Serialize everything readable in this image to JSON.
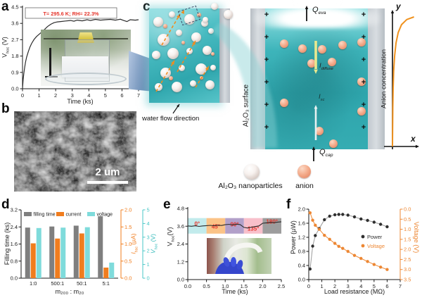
{
  "panels": {
    "a": {
      "label": "a",
      "annotation": "T= 295.6 K; RH= 22.3%",
      "xlabel": "Time (ks)",
      "ylabel": {
        "base": "V",
        "sub": "hoc",
        "unit": " (V)"
      }
    },
    "b": {
      "label": "b",
      "scale_bar": "2 um"
    },
    "c": {
      "label": "c",
      "water_flow": "water flow direction",
      "surface": "Al₂O₃ surface",
      "charge": "+",
      "q_eva": {
        "base": "Q",
        "sub": "eva"
      },
      "q_cap": {
        "base": "Q",
        "sub": "cap"
      },
      "i_diffuse": {
        "base": "I",
        "sub": "diffuse"
      },
      "i_sc": {
        "base": "I",
        "sub": "sc"
      },
      "y_axis": "y",
      "x_axis": "x",
      "concentration": "Anion concentration",
      "legend_np": "Al₂O₃ nanoparticles",
      "legend_anion": "anion"
    },
    "d": {
      "label": "d",
      "ylabel": "Filling time (ks)",
      "xlabel": "m₂₀₀ : m₂₀",
      "i_axis": {
        "base": "I",
        "sub": "hsc",
        "unit": " (µA)"
      },
      "v_axis": {
        "base": "V",
        "sub": "hoc",
        "unit": " (V)"
      }
    },
    "e": {
      "label": "e",
      "xlabel": "Time (ks)",
      "ylabel": {
        "base": "V",
        "sub": "hoc",
        "unit": "(V)"
      }
    },
    "f": {
      "label": "f",
      "ylabel": "Power (µW)",
      "y2label": "Voltage (V)",
      "xlabel": "Load resistance (MΩ)"
    }
  },
  "chart_data": [
    {
      "id": "panel_a",
      "type": "line",
      "title": "",
      "xlabel": "Time (ks)",
      "ylabel": "Vhoc (V)",
      "xlim": [
        0,
        7
      ],
      "ylim": [
        0,
        4.5
      ],
      "xticks": [
        "0",
        "1",
        "2",
        "3",
        "4",
        "5",
        "6",
        "7"
      ],
      "yticks": [
        "0.0",
        "0.9",
        "1.8",
        "2.7",
        "3.6",
        "4.5"
      ],
      "annotation": "T= 295.6 K; RH= 22.3%",
      "annotation_color": "#e5352b",
      "line_color": "#2b2b2b",
      "x": [
        0,
        0.04,
        0.08,
        0.12,
        0.18,
        0.25,
        0.35,
        0.45,
        0.55,
        0.7,
        0.85,
        1.0,
        1.15,
        1.3,
        1.5,
        1.7,
        1.9,
        2.1,
        2.3,
        2.6,
        2.9,
        3.1,
        3.3,
        3.6,
        3.9,
        4.1,
        4.4,
        4.7,
        5.0,
        5.3,
        5.6,
        5.9,
        6.1,
        6.3,
        6.5,
        6.8,
        7.0
      ],
      "y": [
        0,
        0.5,
        0.85,
        1.1,
        1.45,
        1.75,
        2.05,
        2.3,
        2.5,
        2.72,
        2.88,
        3.0,
        3.12,
        3.24,
        3.42,
        3.55,
        3.64,
        3.68,
        3.7,
        3.73,
        3.76,
        3.72,
        3.78,
        3.74,
        3.8,
        3.76,
        3.82,
        3.78,
        3.8,
        3.82,
        3.78,
        3.83,
        3.76,
        3.7,
        3.8,
        3.78,
        3.8
      ]
    },
    {
      "id": "panel_d",
      "type": "bar",
      "categories": [
        "1:0",
        "500:1",
        "50:1",
        "5:1"
      ],
      "xlabel": "m200 : m20",
      "axes": {
        "left": {
          "label": "Filling time (ks)",
          "lim": [
            0,
            3.2
          ],
          "ticks": [
            "0.0",
            "0.8",
            "1.6",
            "2.4",
            "3.2"
          ],
          "color": "#1a1a1a"
        },
        "current": {
          "label": "Ihsc (µA)",
          "lim": [
            0,
            2
          ],
          "ticks": [
            "0.0",
            "0.5",
            "1.0",
            "1.5",
            "2.0"
          ],
          "color": "#f07d1e"
        },
        "voltage": {
          "label": "Vhoc (V)",
          "lim": [
            0,
            5
          ],
          "ticks": [
            "0",
            "1",
            "2",
            "3",
            "4",
            "5"
          ],
          "color": "#49c7c7"
        }
      },
      "series": [
        {
          "name": "filling time",
          "axis": "left",
          "color": "#7f7f7f",
          "values": [
            2.37,
            2.42,
            2.46,
            2.9
          ]
        },
        {
          "name": "current",
          "axis": "current",
          "color": "#f07d1e",
          "values": [
            1.02,
            1.16,
            1.31,
            0.31
          ]
        },
        {
          "name": "voltage",
          "axis": "voltage",
          "color": "#7fdbdb",
          "values": [
            3.67,
            3.7,
            3.73,
            1.14
          ]
        }
      ]
    },
    {
      "id": "panel_e",
      "type": "line",
      "xlim": [
        0,
        2.5
      ],
      "ylim": [
        0,
        4.8
      ],
      "xticks": [
        "0.0",
        "0.5",
        "1.0",
        "1.5",
        "2.0",
        "2.5"
      ],
      "yticks": [
        "0.0",
        "1.2",
        "2.4",
        "3.6",
        "4.8"
      ],
      "line_color": "#2b2b2b",
      "label_color": "#e5352b",
      "band_y": [
        3.1,
        4.15
      ],
      "bands": [
        {
          "label": "0°",
          "color": "#c2ebec"
        },
        {
          "label": "45°",
          "color": "#fbc387"
        },
        {
          "label": "90°",
          "color": "#b2a0c9"
        },
        {
          "label": "135°",
          "color": "#f8c0cb"
        },
        {
          "label": "180°",
          "color": "#9d9d9d"
        }
      ],
      "x": [
        0,
        0.1,
        0.2,
        0.3,
        0.4,
        0.5,
        0.6,
        0.7,
        0.8,
        0.9,
        1.0,
        1.1,
        1.2,
        1.3,
        1.4,
        1.5,
        1.6,
        1.7,
        1.8,
        1.9,
        2.0,
        2.1,
        2.2,
        2.3,
        2.4,
        2.5
      ],
      "y": [
        3.62,
        3.6,
        3.63,
        3.59,
        3.62,
        3.64,
        3.66,
        3.63,
        3.67,
        3.65,
        3.7,
        3.73,
        3.69,
        3.74,
        3.71,
        3.52,
        3.48,
        3.53,
        3.58,
        3.62,
        3.8,
        3.83,
        3.86,
        3.84,
        3.88,
        3.9
      ]
    },
    {
      "id": "panel_f",
      "type": "dual-scatter",
      "xlabel": "Load resistance (MΩ)",
      "xlim": [
        0,
        7
      ],
      "xticks": [
        "0",
        "1",
        "2",
        "3",
        "4",
        "5",
        "6",
        "7"
      ],
      "x": [
        0.1,
        0.3,
        0.5,
        0.8,
        1.2,
        1.6,
        2.0,
        2.3,
        2.6,
        3.0,
        3.5,
        4.0,
        4.5,
        5.0,
        5.5,
        6.0
      ],
      "series": [
        {
          "name": "Power",
          "axis": "left",
          "color": "#2f2f2f",
          "lim": [
            0,
            2
          ],
          "ticks": [
            "0.0",
            "0.4",
            "0.8",
            "1.2",
            "1.6",
            "2.0"
          ],
          "values": [
            0.3,
            0.95,
            1.25,
            1.45,
            1.7,
            1.8,
            1.84,
            1.85,
            1.85,
            1.83,
            1.78,
            1.72,
            1.68,
            1.63,
            1.57,
            1.5
          ]
        },
        {
          "name": "Voltage",
          "axis": "right_inverted",
          "color": "#ed8733",
          "lim": [
            0,
            3.5
          ],
          "ticks": [
            "0.0",
            "0.5",
            "1.0",
            "1.5",
            "2.0",
            "2.5",
            "3.0",
            "3.5"
          ],
          "values": [
            0.18,
            0.55,
            0.8,
            1.0,
            1.3,
            1.5,
            1.7,
            1.85,
            1.95,
            2.1,
            2.3,
            2.45,
            2.6,
            2.75,
            2.88,
            3.0
          ]
        }
      ]
    },
    {
      "id": "panel_c_concentration",
      "type": "line",
      "xlabel": "x",
      "ylabel": "y",
      "axis_title": "Anion concentration",
      "color": "#f0921e",
      "points_normalized": [
        [
          0,
          0
        ],
        [
          0.005,
          0.12
        ],
        [
          0.015,
          0.3
        ],
        [
          0.03,
          0.45
        ],
        [
          0.05,
          0.58
        ],
        [
          0.09,
          0.7
        ],
        [
          0.15,
          0.8
        ],
        [
          0.24,
          0.88
        ],
        [
          0.38,
          0.94
        ],
        [
          0.6,
          0.98
        ],
        [
          0.9,
          1.0
        ]
      ]
    }
  ]
}
